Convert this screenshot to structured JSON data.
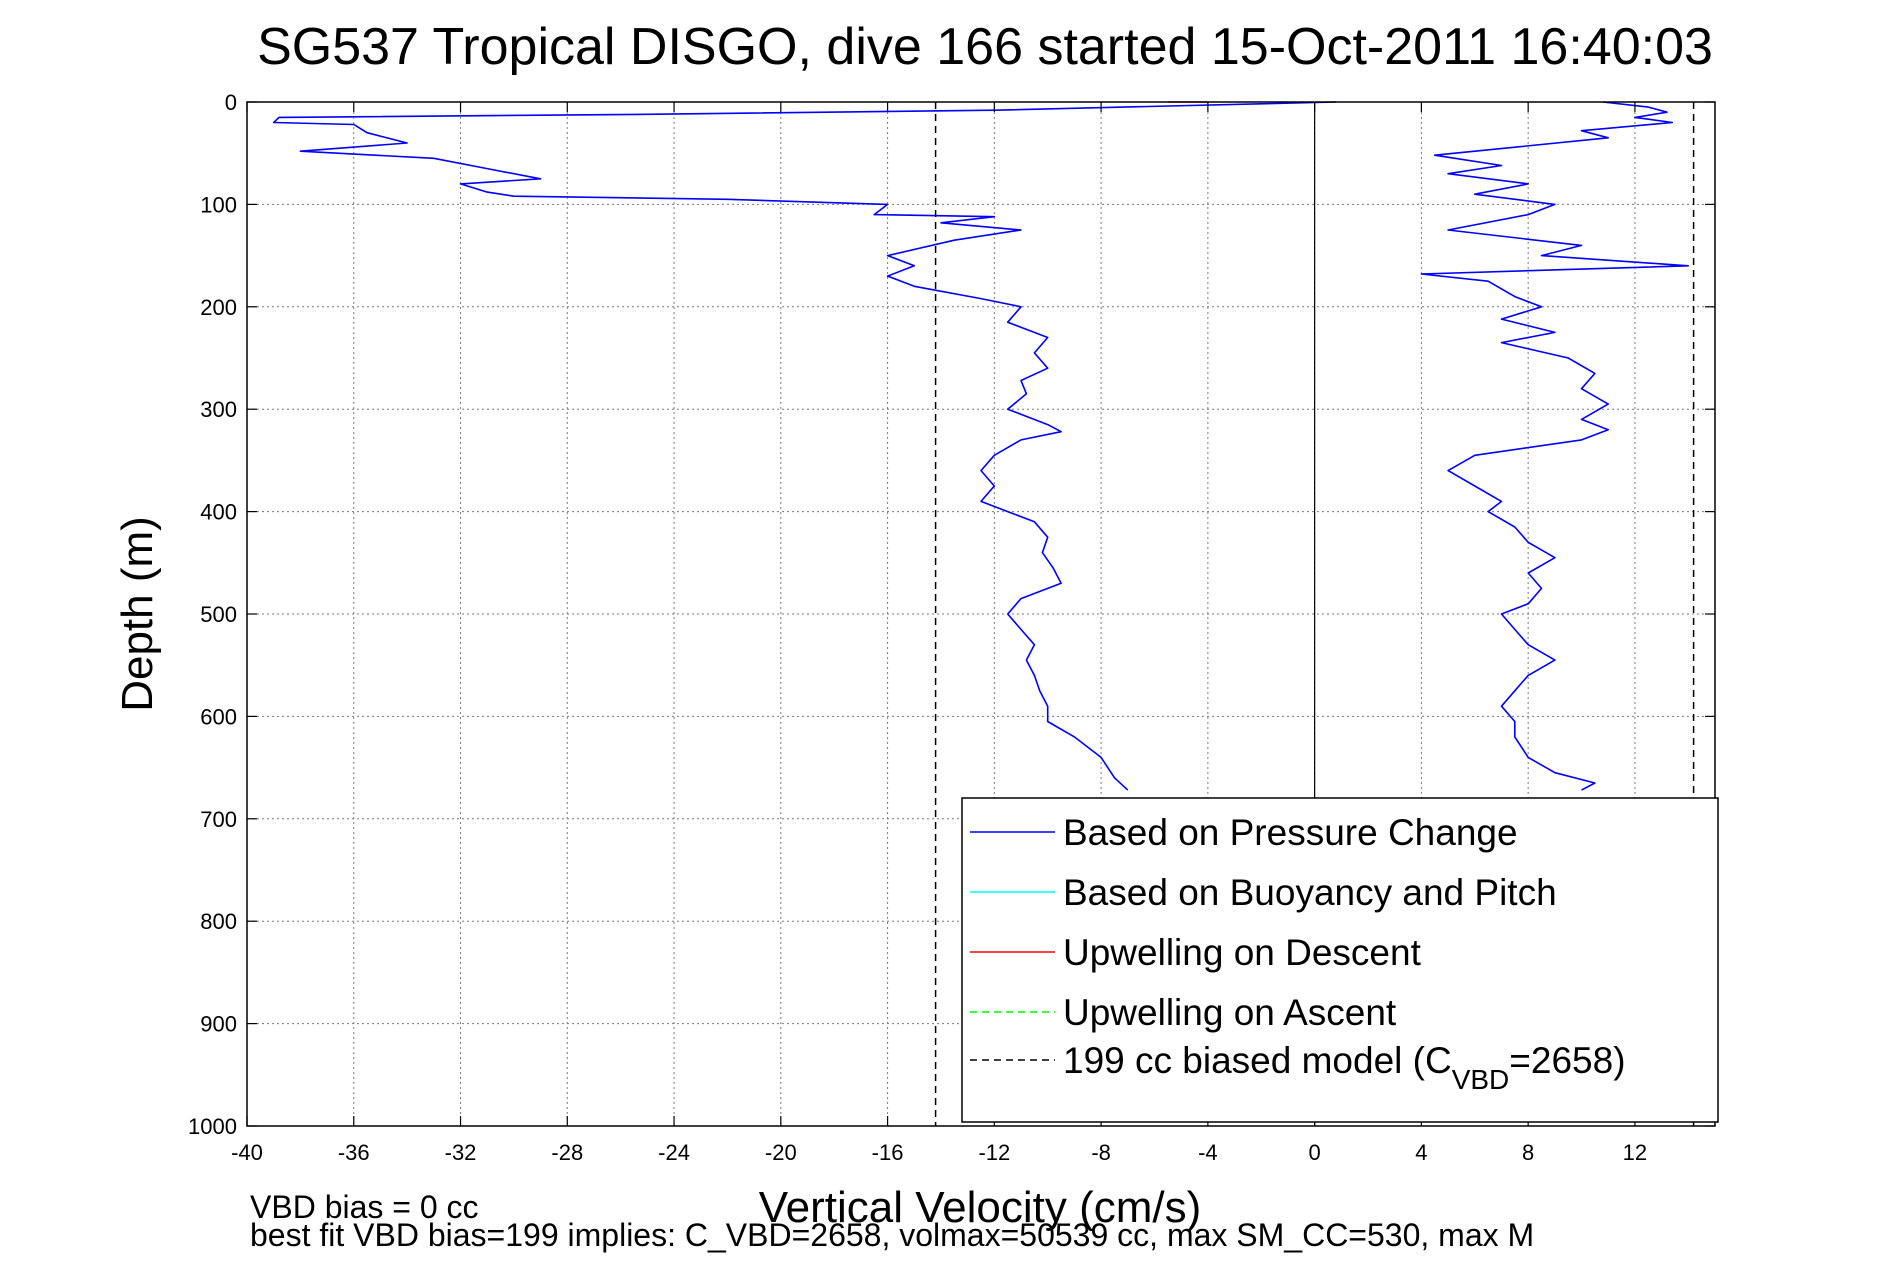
{
  "chart_data": {
    "type": "line",
    "title": "SG537 Tropical DISGO, dive 166 started 15-Oct-2011 16:40:03",
    "xlabel": "Vertical Velocity (cm/s)",
    "ylabel": "Depth (m)",
    "xlim": [
      -40,
      15
    ],
    "ylim": [
      0,
      1000
    ],
    "y_reversed": true,
    "grid": true,
    "x_ticks": [
      -40,
      -36,
      -32,
      -28,
      -24,
      -20,
      -16,
      -12,
      -8,
      -4,
      0,
      4,
      8,
      12
    ],
    "y_ticks": [
      0,
      100,
      200,
      300,
      400,
      500,
      600,
      700,
      800,
      900,
      1000
    ],
    "x_tick_labels": [
      "-40",
      "-36",
      "-32",
      "-28",
      "-24",
      "-20",
      "-16",
      "-12",
      "-8",
      "-4",
      "0",
      "4",
      "8",
      "12"
    ],
    "y_tick_labels": [
      "0",
      "100",
      "200",
      "300",
      "400",
      "500",
      "600",
      "700",
      "800",
      "900",
      "1000"
    ],
    "legend_position": "bottom-right",
    "legend": [
      {
        "label": "Based on Pressure Change",
        "color": "#0000ff",
        "dash": "solid"
      },
      {
        "label": "Based on Buoyancy and Pitch",
        "color": "#00ffff",
        "dash": "solid"
      },
      {
        "label": "Upwelling on Descent",
        "color": "#ff0000",
        "dash": "solid"
      },
      {
        "label": "Upwelling on Ascent",
        "color": "#00ff00",
        "dash": "dashed"
      },
      {
        "label_main": "199 cc biased model (C",
        "label_sub": "VBD",
        "label_rest": "=2658)",
        "color": "#000000",
        "dash": "dashed"
      }
    ],
    "series": [
      {
        "name": "Based on Pressure Change",
        "color": "#0000ff",
        "segments": [
          {
            "points": [
              [
                0.8,
                0
              ],
              [
                -12,
                8
              ],
              [
                -25,
                12
              ],
              [
                -38.8,
                15
              ],
              [
                -39,
                20
              ],
              [
                -36,
                22
              ],
              [
                -35.5,
                30
              ],
              [
                -34,
                40
              ],
              [
                -38,
                48
              ],
              [
                -33,
                55
              ],
              [
                -31,
                65
              ],
              [
                -29,
                75
              ],
              [
                -32,
                80
              ],
              [
                -31,
                88
              ],
              [
                -30,
                92
              ],
              [
                -22,
                95
              ],
              [
                -16,
                100
              ],
              [
                -16.5,
                110
              ],
              [
                -12,
                112
              ],
              [
                -14,
                118
              ],
              [
                -11,
                125
              ],
              [
                -13.5,
                135
              ],
              [
                -16,
                150
              ],
              [
                -15,
                160
              ],
              [
                -16,
                170
              ],
              [
                -15,
                180
              ],
              [
                -12.5,
                192
              ],
              [
                -11,
                200
              ],
              [
                -11.5,
                215
              ],
              [
                -10,
                230
              ],
              [
                -10.5,
                245
              ],
              [
                -10,
                260
              ],
              [
                -11,
                272
              ],
              [
                -10.8,
                285
              ],
              [
                -11.5,
                300
              ],
              [
                -10,
                315
              ],
              [
                -9.5,
                322
              ],
              [
                -11,
                330
              ],
              [
                -12,
                345
              ],
              [
                -12.5,
                360
              ],
              [
                -12,
                375
              ],
              [
                -12.5,
                390
              ],
              [
                -11.5,
                400
              ],
              [
                -10.5,
                410
              ],
              [
                -10,
                425
              ],
              [
                -10.2,
                440
              ],
              [
                -9.8,
                455
              ],
              [
                -9.5,
                470
              ],
              [
                -11,
                485
              ],
              [
                -11.5,
                500
              ],
              [
                -11,
                515
              ],
              [
                -10.5,
                530
              ],
              [
                -10.8,
                545
              ],
              [
                -10.5,
                560
              ],
              [
                -10.3,
                575
              ],
              [
                -10,
                590
              ],
              [
                -10,
                605
              ],
              [
                -9,
                620
              ],
              [
                -8,
                640
              ],
              [
                -7.5,
                660
              ],
              [
                -7,
                672
              ]
            ]
          },
          {
            "points": [
              [
                -7.5,
                985
              ],
              [
                -3,
                990
              ],
              [
                2,
                991
              ],
              [
                6,
                988
              ]
            ]
          },
          {
            "points": [
              [
                10.8,
                0
              ],
              [
                12.5,
                5
              ],
              [
                13.2,
                10
              ],
              [
                12,
                15
              ],
              [
                13.4,
                20
              ],
              [
                10,
                28
              ],
              [
                11,
                35
              ],
              [
                6,
                48
              ],
              [
                4.5,
                52
              ],
              [
                7,
                62
              ],
              [
                5,
                70
              ],
              [
                8,
                80
              ],
              [
                6,
                90
              ],
              [
                9,
                100
              ],
              [
                8,
                110
              ],
              [
                5,
                125
              ],
              [
                10,
                140
              ],
              [
                8.5,
                150
              ],
              [
                14,
                160
              ],
              [
                4,
                168
              ],
              [
                6.5,
                175
              ],
              [
                7.5,
                190
              ],
              [
                8.5,
                200
              ],
              [
                7,
                212
              ],
              [
                9,
                225
              ],
              [
                7,
                235
              ],
              [
                9.5,
                250
              ],
              [
                10.5,
                265
              ],
              [
                10,
                280
              ],
              [
                11,
                295
              ],
              [
                10,
                310
              ],
              [
                11,
                320
              ],
              [
                10,
                330
              ],
              [
                6,
                345
              ],
              [
                5,
                360
              ],
              [
                6,
                375
              ],
              [
                7,
                390
              ],
              [
                6.5,
                400
              ],
              [
                7.5,
                415
              ],
              [
                8,
                430
              ],
              [
                9,
                445
              ],
              [
                8,
                460
              ],
              [
                8.5,
                475
              ],
              [
                8,
                490
              ],
              [
                7,
                500
              ],
              [
                7.5,
                515
              ],
              [
                8,
                530
              ],
              [
                9,
                545
              ],
              [
                8,
                560
              ],
              [
                7.5,
                575
              ],
              [
                7,
                590
              ],
              [
                7.5,
                605
              ],
              [
                7.5,
                620
              ],
              [
                8,
                640
              ],
              [
                9,
                655
              ],
              [
                10.5,
                665
              ],
              [
                10,
                672
              ]
            ]
          }
        ]
      },
      {
        "name": "Upwelling on Descent",
        "color": "#ff0000",
        "segments": [
          {
            "points": [
              [
                -5.5,
                0
              ],
              [
                -4,
                0
              ]
            ]
          }
        ]
      },
      {
        "name": "199 cc biased model (C_VBD=2658)",
        "color": "#000000",
        "dash": true,
        "segments": [
          {
            "points": [
              [
                -14.2,
                0
              ],
              [
                -14.2,
                1000
              ]
            ]
          },
          {
            "points": [
              [
                14.2,
                0
              ],
              [
                14.2,
                1000
              ]
            ]
          }
        ]
      }
    ],
    "zero_line_x": 0
  },
  "footnotes": {
    "line1": "VBD bias = 0 cc",
    "line2": "best fit VBD bias=199 implies: C_VBD=2658, volmax=50539 cc, max SM_CC=530, max M"
  }
}
